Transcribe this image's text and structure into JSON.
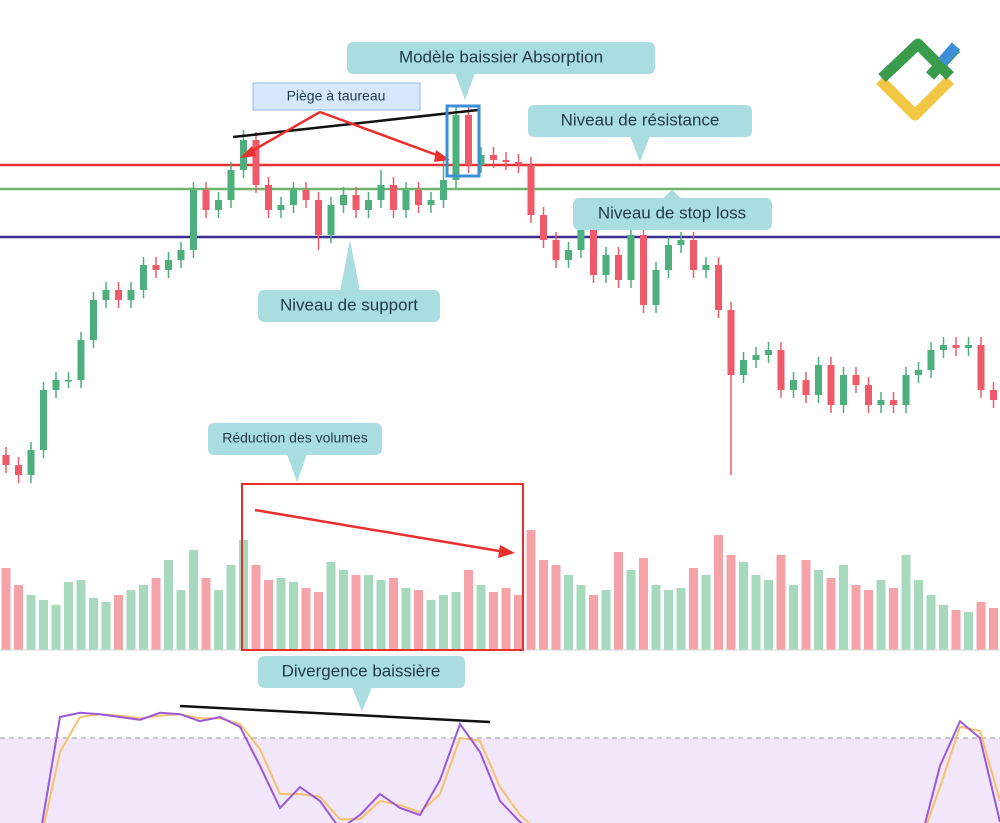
{
  "chart_data": [
    {
      "type": "candlestick",
      "ylim": [
        0,
        400
      ],
      "up_color": "#4caf7d",
      "down_color": "#ef5a6a",
      "open": [
        45,
        35,
        25,
        50,
        110,
        120,
        120,
        160,
        200,
        210,
        200,
        210,
        235,
        230,
        240,
        250,
        310,
        290,
        300,
        330,
        360,
        315,
        290,
        295,
        310,
        300,
        265,
        295,
        305,
        290,
        300,
        315,
        290,
        310,
        295,
        300,
        320,
        385,
        335,
        345,
        340,
        338,
        335,
        285,
        260,
        240,
        250,
        270,
        225,
        245,
        220,
        265,
        195,
        230,
        255,
        260,
        230,
        235,
        190,
        125,
        140,
        145,
        150,
        110,
        120,
        105,
        135,
        95,
        125,
        115,
        95,
        100,
        95,
        125,
        130,
        150,
        155,
        152,
        155,
        110
      ],
      "high": [
        53,
        43,
        58,
        118,
        128,
        128,
        168,
        208,
        218,
        218,
        218,
        243,
        243,
        248,
        258,
        318,
        318,
        308,
        338,
        370,
        368,
        323,
        303,
        318,
        318,
        308,
        303,
        313,
        313,
        308,
        330,
        323,
        318,
        318,
        308,
        340,
        395,
        393,
        353,
        353,
        348,
        346,
        343,
        293,
        268,
        258,
        278,
        278,
        253,
        253,
        273,
        273,
        238,
        263,
        268,
        268,
        243,
        243,
        198,
        148,
        153,
        158,
        158,
        128,
        128,
        143,
        143,
        133,
        133,
        123,
        108,
        108,
        133,
        138,
        158,
        163,
        163,
        163,
        163,
        118
      ],
      "low": [
        27,
        17,
        17,
        42,
        102,
        112,
        112,
        152,
        192,
        192,
        192,
        202,
        222,
        222,
        232,
        242,
        282,
        282,
        292,
        322,
        307,
        282,
        282,
        287,
        292,
        250,
        257,
        287,
        282,
        282,
        292,
        282,
        282,
        287,
        287,
        292,
        312,
        327,
        327,
        332,
        330,
        327,
        277,
        252,
        232,
        232,
        242,
        217,
        217,
        212,
        212,
        187,
        187,
        222,
        247,
        222,
        222,
        182,
        25,
        117,
        132,
        137,
        102,
        102,
        97,
        97,
        87,
        87,
        107,
        87,
        87,
        87,
        87,
        117,
        122,
        142,
        144,
        144,
        102,
        92
      ],
      "close": [
        35,
        25,
        50,
        110,
        120,
        120,
        160,
        200,
        210,
        200,
        210,
        235,
        230,
        240,
        250,
        310,
        290,
        300,
        330,
        360,
        315,
        290,
        295,
        310,
        300,
        265,
        295,
        305,
        290,
        300,
        315,
        290,
        310,
        295,
        300,
        320,
        385,
        335,
        345,
        340,
        338,
        335,
        285,
        260,
        240,
        250,
        270,
        225,
        245,
        220,
        265,
        195,
        230,
        255,
        260,
        230,
        235,
        190,
        125,
        140,
        145,
        150,
        110,
        120,
        105,
        135,
        95,
        125,
        115,
        95,
        100,
        95,
        125,
        130,
        150,
        155,
        152,
        155,
        110,
        100
      ],
      "levels": [
        {
          "name": "Niveau de résistance",
          "value": 335,
          "color": "#e8312f"
        },
        {
          "name": "Niveau de stop loss",
          "value": 311,
          "color": "#6fb36f"
        },
        {
          "name": "Niveau de support",
          "value": 263,
          "color": "#3b2f8f"
        }
      ],
      "annotations": [
        "Modèle baissier Absorption",
        "Piège à taureau"
      ]
    },
    {
      "type": "bar",
      "ylim": [
        0,
        130
      ],
      "up_color": "#a6d9bd",
      "down_color": "#f5a3a8",
      "values": [
        82,
        65,
        55,
        50,
        45,
        68,
        70,
        52,
        48,
        55,
        60,
        65,
        72,
        90,
        60,
        100,
        72,
        60,
        85,
        110,
        85,
        70,
        72,
        68,
        62,
        58,
        88,
        80,
        75,
        75,
        70,
        72,
        62,
        60,
        50,
        55,
        58,
        80,
        65,
        58,
        62,
        55,
        120,
        90,
        85,
        75,
        65,
        55,
        60,
        98,
        80,
        92,
        65,
        60,
        62,
        82,
        75,
        115,
        95,
        88,
        75,
        70,
        95,
        65,
        90,
        80,
        72,
        85,
        65,
        60,
        70,
        62,
        95,
        70,
        55,
        45,
        40,
        38,
        48,
        42
      ],
      "annotations": [
        "Réduction des volumes"
      ]
    },
    {
      "type": "line",
      "ylim": [
        0,
        100
      ],
      "band": 80,
      "band_color": "#f2e6fa",
      "series": [
        {
          "color": "#9b59d9",
          "values": [
            5,
            5,
            10,
            95,
            98,
            97,
            95,
            93,
            98,
            97,
            92,
            95,
            88,
            60,
            30,
            45,
            35,
            15,
            25,
            40,
            30,
            25,
            50,
            90,
            70,
            35,
            20,
            10,
            5,
            5,
            5,
            5,
            5,
            5,
            5,
            15,
            10,
            5,
            15,
            5,
            5,
            5,
            5,
            5,
            5,
            5,
            5,
            60,
            92,
            80,
            20
          ]
        },
        {
          "color": "#f5c26b",
          "values": [
            5,
            5,
            5,
            70,
            95,
            97,
            96,
            94,
            96,
            97,
            94,
            94,
            90,
            72,
            40,
            40,
            38,
            22,
            22,
            35,
            32,
            27,
            40,
            80,
            78,
            45,
            25,
            12,
            5,
            5,
            5,
            5,
            5,
            5,
            5,
            10,
            12,
            7,
            10,
            7,
            5,
            5,
            5,
            5,
            5,
            5,
            5,
            45,
            88,
            85,
            35
          ]
        }
      ],
      "annotations": [
        "Divergence baissière"
      ]
    }
  ]
}
